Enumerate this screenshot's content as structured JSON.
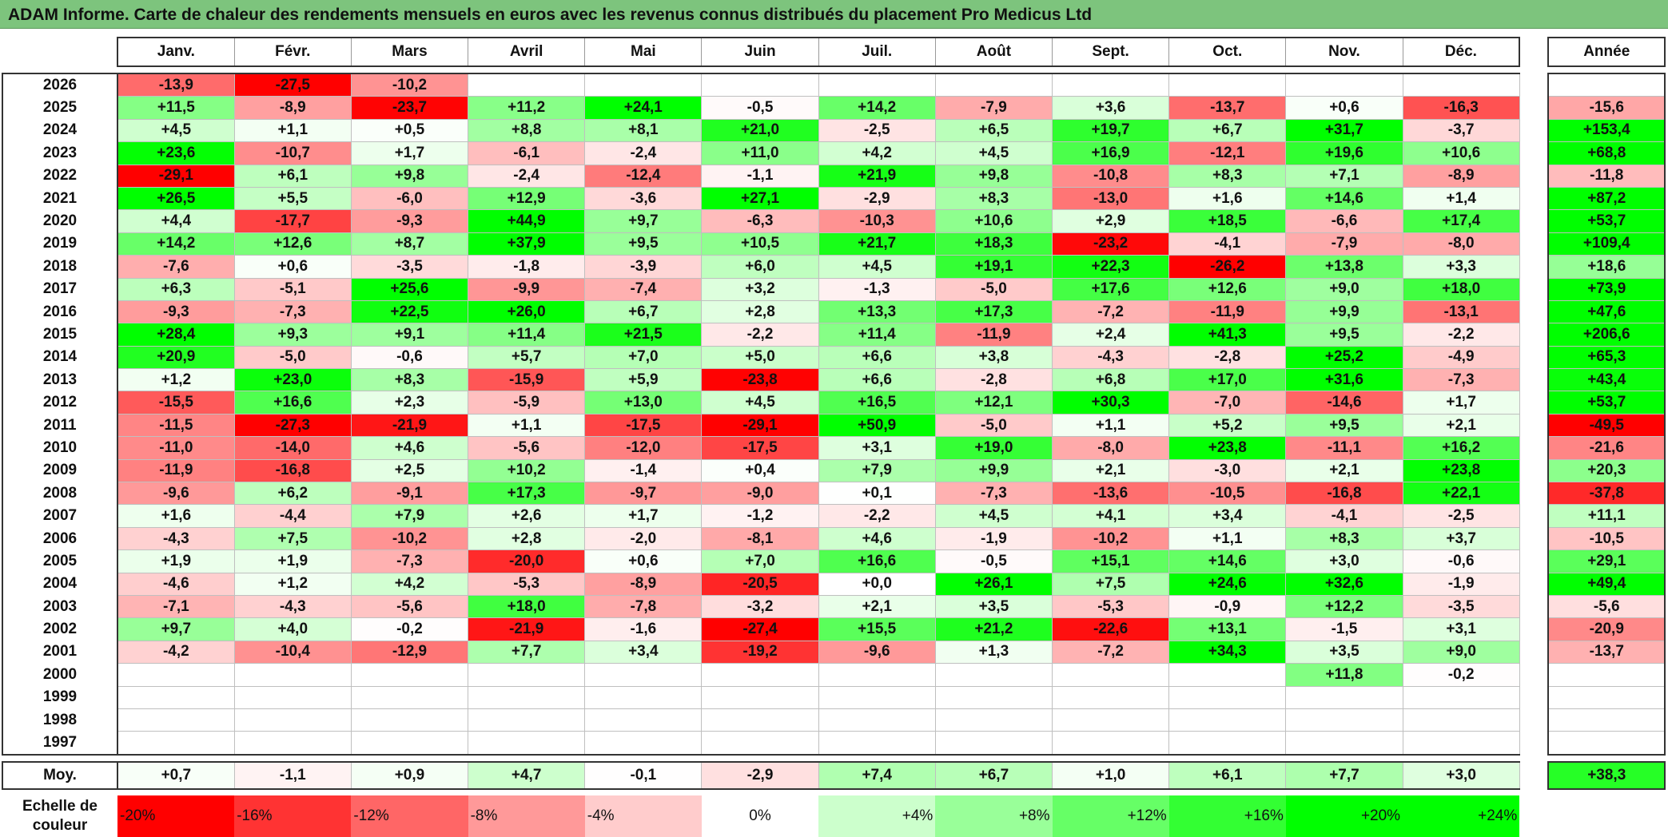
{
  "title": "ADAM Informe. Carte de chaleur des rendements mensuels en euros avec les revenus connus distribués du placement Pro Medicus Ltd",
  "chart_data": {
    "type": "heatmap",
    "months": [
      "Janv.",
      "Févr.",
      "Mars",
      "Avril",
      "Mai",
      "Juin",
      "Juil.",
      "Août",
      "Sept.",
      "Oct.",
      "Nov.",
      "Déc."
    ],
    "annual_header": "Année",
    "rows": [
      {
        "year": "2026",
        "values": [
          "-13,9",
          "-27,5",
          "-10,2",
          "",
          "",
          "",
          "",
          "",
          "",
          "",
          "",
          ""
        ],
        "annual": ""
      },
      {
        "year": "2025",
        "values": [
          "+11,5",
          "-8,9",
          "-23,7",
          "+11,2",
          "+24,1",
          "-0,5",
          "+14,2",
          "-7,9",
          "+3,6",
          "-13,7",
          "+0,6",
          "-16,3"
        ],
        "annual": "-15,6"
      },
      {
        "year": "2024",
        "values": [
          "+4,5",
          "+1,1",
          "+0,5",
          "+8,8",
          "+8,1",
          "+21,0",
          "-2,5",
          "+6,5",
          "+19,7",
          "+6,7",
          "+31,7",
          "-3,7"
        ],
        "annual": "+153,4"
      },
      {
        "year": "2023",
        "values": [
          "+23,6",
          "-10,7",
          "+1,7",
          "-6,1",
          "-2,4",
          "+11,0",
          "+4,2",
          "+4,5",
          "+16,9",
          "-12,1",
          "+19,6",
          "+10,6"
        ],
        "annual": "+68,8"
      },
      {
        "year": "2022",
        "values": [
          "-29,1",
          "+6,1",
          "+9,8",
          "-2,4",
          "-12,4",
          "-1,1",
          "+21,9",
          "+9,8",
          "-10,8",
          "+8,3",
          "+7,1",
          "-8,9"
        ],
        "annual": "-11,8"
      },
      {
        "year": "2021",
        "values": [
          "+26,5",
          "+5,5",
          "-6,0",
          "+12,9",
          "-3,6",
          "+27,1",
          "-2,9",
          "+8,3",
          "-13,0",
          "+1,6",
          "+14,6",
          "+1,4"
        ],
        "annual": "+87,2"
      },
      {
        "year": "2020",
        "values": [
          "+4,4",
          "-17,7",
          "-9,3",
          "+44,9",
          "+9,7",
          "-6,3",
          "-10,3",
          "+10,6",
          "+2,9",
          "+18,5",
          "-6,6",
          "+17,4"
        ],
        "annual": "+53,7"
      },
      {
        "year": "2019",
        "values": [
          "+14,2",
          "+12,6",
          "+8,7",
          "+37,9",
          "+9,5",
          "+10,5",
          "+21,7",
          "+18,3",
          "-23,2",
          "-4,1",
          "-7,9",
          "-8,0"
        ],
        "annual": "+109,4"
      },
      {
        "year": "2018",
        "values": [
          "-7,6",
          "+0,6",
          "-3,5",
          "-1,8",
          "-3,9",
          "+6,0",
          "+4,5",
          "+19,1",
          "+22,3",
          "-26,2",
          "+13,8",
          "+3,3"
        ],
        "annual": "+18,6"
      },
      {
        "year": "2017",
        "values": [
          "+6,3",
          "-5,1",
          "+25,6",
          "-9,9",
          "-7,4",
          "+3,2",
          "-1,3",
          "-5,0",
          "+17,6",
          "+12,6",
          "+9,0",
          "+18,0"
        ],
        "annual": "+73,9"
      },
      {
        "year": "2016",
        "values": [
          "-9,3",
          "-7,3",
          "+22,5",
          "+26,0",
          "+6,7",
          "+2,8",
          "+13,3",
          "+17,3",
          "-7,2",
          "-11,9",
          "+9,9",
          "-13,1"
        ],
        "annual": "+47,6"
      },
      {
        "year": "2015",
        "values": [
          "+28,4",
          "+9,3",
          "+9,1",
          "+11,4",
          "+21,5",
          "-2,2",
          "+11,4",
          "-11,9",
          "+2,4",
          "+41,3",
          "+9,5",
          "-2,2"
        ],
        "annual": "+206,6"
      },
      {
        "year": "2014",
        "values": [
          "+20,9",
          "-5,0",
          "-0,6",
          "+5,7",
          "+7,0",
          "+5,0",
          "+6,6",
          "+3,8",
          "-4,3",
          "-2,8",
          "+25,2",
          "-4,9"
        ],
        "annual": "+65,3"
      },
      {
        "year": "2013",
        "values": [
          "+1,2",
          "+23,0",
          "+8,3",
          "-15,9",
          "+5,9",
          "-23,8",
          "+6,6",
          "-2,8",
          "+6,8",
          "+17,0",
          "+31,6",
          "-7,3"
        ],
        "annual": "+43,4"
      },
      {
        "year": "2012",
        "values": [
          "-15,5",
          "+16,6",
          "+2,3",
          "-5,9",
          "+13,0",
          "+4,5",
          "+16,5",
          "+12,1",
          "+30,3",
          "-7,0",
          "-14,6",
          "+1,7"
        ],
        "annual": "+53,7"
      },
      {
        "year": "2011",
        "values": [
          "-11,5",
          "-27,3",
          "-21,9",
          "+1,1",
          "-17,5",
          "-29,1",
          "+50,9",
          "-5,0",
          "+1,1",
          "+5,2",
          "+9,5",
          "+2,1"
        ],
        "annual": "-49,5"
      },
      {
        "year": "2010",
        "values": [
          "-11,0",
          "-14,0",
          "+4,6",
          "-5,6",
          "-12,0",
          "-17,5",
          "+3,1",
          "+19,0",
          "-8,0",
          "+23,8",
          "-11,1",
          "+16,2"
        ],
        "annual": "-21,6"
      },
      {
        "year": "2009",
        "values": [
          "-11,9",
          "-16,8",
          "+2,5",
          "+10,2",
          "-1,4",
          "+0,4",
          "+7,9",
          "+9,9",
          "+2,1",
          "-3,0",
          "+2,1",
          "+23,8"
        ],
        "annual": "+20,3"
      },
      {
        "year": "2008",
        "values": [
          "-9,6",
          "+6,2",
          "-9,1",
          "+17,3",
          "-9,7",
          "-9,0",
          "+0,1",
          "-7,3",
          "-13,6",
          "-10,5",
          "-16,8",
          "+22,1"
        ],
        "annual": "-37,8"
      },
      {
        "year": "2007",
        "values": [
          "+1,6",
          "-4,4",
          "+7,9",
          "+2,6",
          "+1,7",
          "-1,2",
          "-2,2",
          "+4,5",
          "+4,1",
          "+3,4",
          "-4,1",
          "-2,5"
        ],
        "annual": "+11,1"
      },
      {
        "year": "2006",
        "values": [
          "-4,3",
          "+7,5",
          "-10,2",
          "+2,8",
          "-2,0",
          "-8,1",
          "+4,6",
          "-1,9",
          "-10,2",
          "+1,1",
          "+8,3",
          "+3,7"
        ],
        "annual": "-10,5"
      },
      {
        "year": "2005",
        "values": [
          "+1,9",
          "+1,9",
          "-7,3",
          "-20,0",
          "+0,6",
          "+7,0",
          "+16,6",
          "-0,5",
          "+15,1",
          "+14,6",
          "+3,0",
          "-0,6"
        ],
        "annual": "+29,1"
      },
      {
        "year": "2004",
        "values": [
          "-4,6",
          "+1,2",
          "+4,2",
          "-5,3",
          "-8,9",
          "-20,5",
          "+0,0",
          "+26,1",
          "+7,5",
          "+24,6",
          "+32,6",
          "-1,9"
        ],
        "annual": "+49,4"
      },
      {
        "year": "2003",
        "values": [
          "-7,1",
          "-4,3",
          "-5,6",
          "+18,0",
          "-7,8",
          "-3,2",
          "+2,1",
          "+3,5",
          "-5,3",
          "-0,9",
          "+12,2",
          "-3,5"
        ],
        "annual": "-5,6"
      },
      {
        "year": "2002",
        "values": [
          "+9,7",
          "+4,0",
          "-0,2",
          "-21,9",
          "-1,6",
          "-27,4",
          "+15,5",
          "+21,2",
          "-22,6",
          "+13,1",
          "-1,5",
          "+3,1"
        ],
        "annual": "-20,9"
      },
      {
        "year": "2001",
        "values": [
          "-4,2",
          "-10,4",
          "-12,9",
          "+7,7",
          "+3,4",
          "-19,2",
          "-9,6",
          "+1,3",
          "-7,2",
          "+34,3",
          "+3,5",
          "+9,0"
        ],
        "annual": "-13,7"
      },
      {
        "year": "2000",
        "values": [
          "",
          "",
          "",
          "",
          "",
          "",
          "",
          "",
          "",
          "",
          "+11,8",
          "-0,2"
        ],
        "annual": ""
      },
      {
        "year": "1999",
        "values": [
          "",
          "",
          "",
          "",
          "",
          "",
          "",
          "",
          "",
          "",
          "",
          ""
        ],
        "annual": ""
      },
      {
        "year": "1998",
        "values": [
          "",
          "",
          "",
          "",
          "",
          "",
          "",
          "",
          "",
          "",
          "",
          ""
        ],
        "annual": ""
      },
      {
        "year": "1997",
        "values": [
          "",
          "",
          "",
          "",
          "",
          "",
          "",
          "",
          "",
          "",
          "",
          ""
        ],
        "annual": ""
      }
    ],
    "average": {
      "label": "Moy.",
      "values": [
        "+0,7",
        "-1,1",
        "+0,9",
        "+4,7",
        "-0,1",
        "-2,9",
        "+7,4",
        "+6,7",
        "+1,0",
        "+6,1",
        "+7,7",
        "+3,0"
      ],
      "annual": "+38,3"
    },
    "color_scale": {
      "label": "Echelle de couleur",
      "stops": [
        "-20%",
        "-16%",
        "-12%",
        "-8%",
        "-4%",
        "0%",
        "+4%",
        "+8%",
        "+12%",
        "+16%",
        "+20%",
        "+24%"
      ]
    },
    "colors": {
      "negative": "#ff0000",
      "neutral": "#ffffff",
      "positive": "#00ff00",
      "title_bg": "#7dc47d"
    }
  }
}
